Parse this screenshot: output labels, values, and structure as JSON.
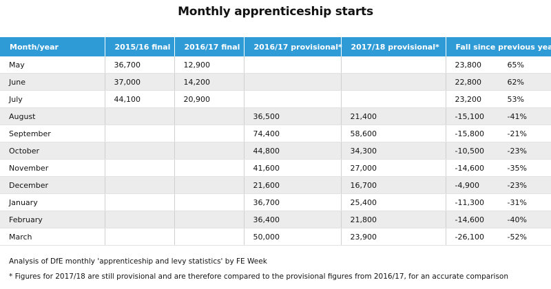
{
  "title": "Monthly apprenticeship starts",
  "colors": {
    "header_bg": "#2e9ad6",
    "header_text": "#ffffff",
    "alt_row_bg": "#ececec"
  },
  "table": {
    "headers": [
      "Month/year",
      "2015/16 final",
      "2016/17 final",
      "2016/17 provisional*",
      "2017/18 provisional*",
      "Fall since previous year"
    ],
    "rows": [
      {
        "month": "May",
        "final_1516": "36,700",
        "final_1617": "12,900",
        "prov_1617": "",
        "prov_1718": "",
        "fall": "23,800",
        "fall_pct": "65%"
      },
      {
        "month": "June",
        "final_1516": "37,000",
        "final_1617": "14,200",
        "prov_1617": "",
        "prov_1718": "",
        "fall": "22,800",
        "fall_pct": "62%"
      },
      {
        "month": "July",
        "final_1516": "44,100",
        "final_1617": "20,900",
        "prov_1617": "",
        "prov_1718": "",
        "fall": "23,200",
        "fall_pct": "53%"
      },
      {
        "month": "August",
        "final_1516": "",
        "final_1617": "",
        "prov_1617": "36,500",
        "prov_1718": "21,400",
        "fall": "-15,100",
        "fall_pct": "-41%"
      },
      {
        "month": "September",
        "final_1516": "",
        "final_1617": "",
        "prov_1617": "74,400",
        "prov_1718": "58,600",
        "fall": "-15,800",
        "fall_pct": "-21%"
      },
      {
        "month": "October",
        "final_1516": "",
        "final_1617": "",
        "prov_1617": "44,800",
        "prov_1718": "34,300",
        "fall": "-10,500",
        "fall_pct": "-23%"
      },
      {
        "month": "November",
        "final_1516": "",
        "final_1617": "",
        "prov_1617": "41,600",
        "prov_1718": "27,000",
        "fall": "-14,600",
        "fall_pct": "-35%"
      },
      {
        "month": "December",
        "final_1516": "",
        "final_1617": "",
        "prov_1617": "21,600",
        "prov_1718": "16,700",
        "fall": "-4,900",
        "fall_pct": "-23%"
      },
      {
        "month": "January",
        "final_1516": "",
        "final_1617": "",
        "prov_1617": "36,700",
        "prov_1718": "25,400",
        "fall": "-11,300",
        "fall_pct": "-31%"
      },
      {
        "month": "February",
        "final_1516": "",
        "final_1617": "",
        "prov_1617": "36,400",
        "prov_1718": "21,800",
        "fall": "-14,600",
        "fall_pct": "-40%"
      },
      {
        "month": "March",
        "final_1516": "",
        "final_1617": "",
        "prov_1617": "50,000",
        "prov_1718": "23,900",
        "fall": "-26,100",
        "fall_pct": "-52%"
      }
    ]
  },
  "notes": {
    "source": "Analysis of DfE monthly 'apprenticeship and levy statistics' by FE Week",
    "footnote": "* Figures for 2017/18 are still provisional and are therefore compared to the provisional figures from 2016/17, for an accurate comparison"
  }
}
